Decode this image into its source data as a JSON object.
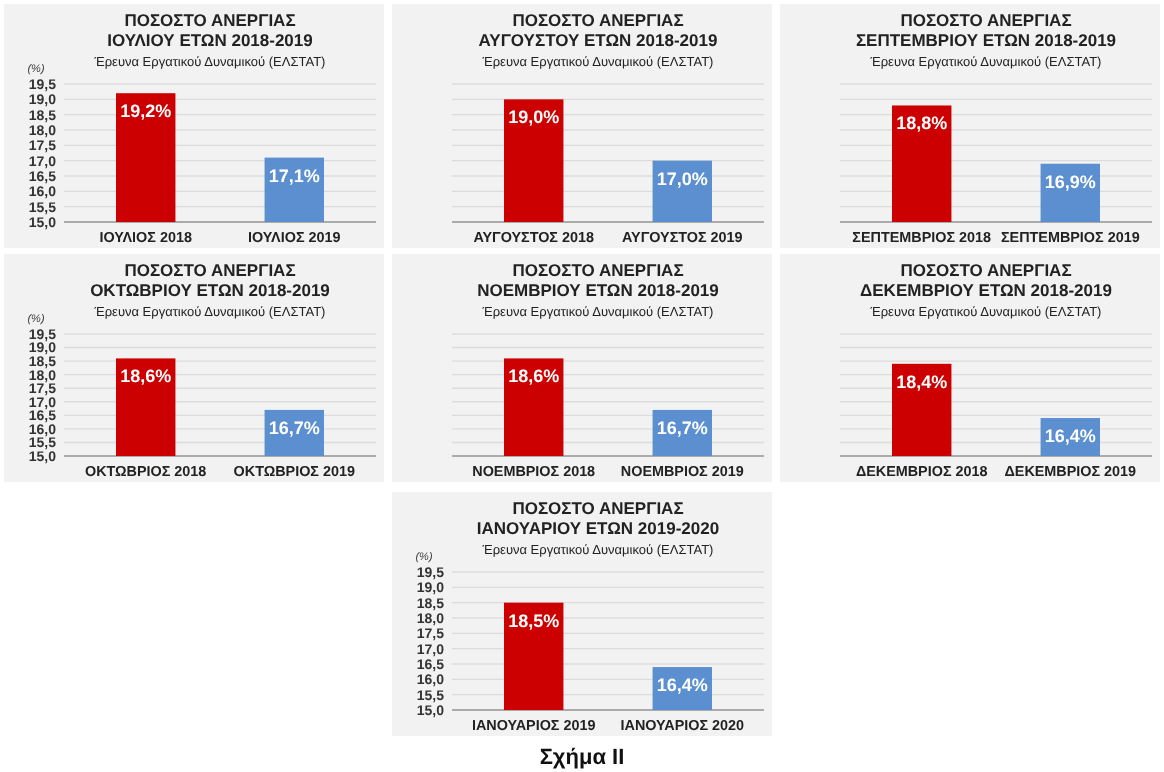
{
  "chart_data": [
    {
      "type": "bar",
      "title": "ΠΟΣΟΣΤΟ ΑΝΕΡΓΙΑΣ\nΙΟΥΛΙΟΥ ΕΤΩΝ 2018-2019",
      "subtitle": "Έρευνα Εργατικού Δυναμικού (ΕΛΣΤΑΤ)",
      "ylabel": "(%)",
      "categories": [
        "ΙΟΥΛΙΟΣ 2018",
        "ΙΟΥΛΙΟΣ 2019"
      ],
      "values": [
        19.2,
        17.1
      ],
      "value_labels": [
        "19,2%",
        "17,1%"
      ],
      "colors": [
        "#cc0000",
        "#5b8fd0"
      ],
      "ylim": [
        15,
        19.5
      ],
      "yticks": [
        {
          "value": 15,
          "label": "15,0"
        },
        {
          "value": 15.5,
          "label": "15,5"
        },
        {
          "value": 16,
          "label": "16,0"
        },
        {
          "value": 16.5,
          "label": "16,5"
        },
        {
          "value": 17,
          "label": "17,0"
        },
        {
          "value": 17.5,
          "label": "17,5"
        },
        {
          "value": 18,
          "label": "18,0"
        },
        {
          "value": 18.5,
          "label": "18,5"
        },
        {
          "value": 19,
          "label": "19,0"
        },
        {
          "value": 19.5,
          "label": "19,5"
        }
      ],
      "grid": "y"
    },
    {
      "type": "bar",
      "title": "ΠΟΣΟΣΤΟ ΑΝΕΡΓΙΑΣ\nΑΥΓΟΥΣΤΟΥ ΕΤΩΝ 2018-2019",
      "subtitle": "Έρευνα Εργατικού Δυναμικού (ΕΛΣΤΑΤ)",
      "categories": [
        "ΑΥΓΟΥΣΤΟΣ 2018",
        "ΑΥΓΟΥΣΤΟΣ 2019"
      ],
      "values": [
        19.0,
        17.0
      ],
      "value_labels": [
        "19,0%",
        "17,0%"
      ],
      "colors": [
        "#cc0000",
        "#5b8fd0"
      ],
      "ylim": [
        15,
        19.5
      ],
      "yticks": [
        {
          "value": 15,
          "label": null
        },
        {
          "value": 15.5,
          "label": null
        },
        {
          "value": 16,
          "label": null
        },
        {
          "value": 16.5,
          "label": null
        },
        {
          "value": 17,
          "label": null
        },
        {
          "value": 17.5,
          "label": null
        },
        {
          "value": 18,
          "label": null
        },
        {
          "value": 18.5,
          "label": null
        },
        {
          "value": 19,
          "label": null
        },
        {
          "value": 19.5,
          "label": null
        }
      ],
      "grid": "y",
      "tick_labels": "x"
    },
    {
      "type": "bar",
      "title": "ΠΟΣΟΣΤΟ ΑΝΕΡΓΙΑΣ\nΣΕΠΤΕΜΒΡΙΟΥ ΕΤΩΝ 2018-2019",
      "subtitle": "Έρευνα Εργατικού Δυναμικού (ΕΛΣΤΑΤ)",
      "categories": [
        "ΣΕΠΤΕΜΒΡΙΟΣ 2018",
        "ΣΕΠΤΕΜΒΡΙΟΣ 2019"
      ],
      "values": [
        18.8,
        16.9
      ],
      "value_labels": [
        "18,8%",
        "16,9%"
      ],
      "colors": [
        "#cc0000",
        "#5b8fd0"
      ],
      "ylim": [
        15,
        19.5
      ],
      "yticks": [
        {
          "value": 15,
          "label": null
        },
        {
          "value": 15.5,
          "label": null
        },
        {
          "value": 16,
          "label": null
        },
        {
          "value": 16.5,
          "label": null
        },
        {
          "value": 17,
          "label": null
        },
        {
          "value": 17.5,
          "label": null
        },
        {
          "value": 18,
          "label": null
        },
        {
          "value": 18.5,
          "label": null
        },
        {
          "value": 19,
          "label": null
        },
        {
          "value": 19.5,
          "label": null
        }
      ],
      "grid": "y",
      "tick_labels": "x"
    },
    {
      "type": "bar",
      "title": "ΠΟΣΟΣΤΟ ΑΝΕΡΓΙΑΣ\nΟΚΤΩΒΡΙΟΥ ΕΤΩΝ 2018-2019",
      "subtitle": "Έρευνα Εργατικού Δυναμικού (ΕΛΣΤΑΤ)",
      "ylabel": "(%)",
      "categories": [
        "ΟΚΤΩΒΡΙΟΣ 2018",
        "ΟΚΤΩΒΡΙΟΣ 2019"
      ],
      "values": [
        18.6,
        16.7
      ],
      "value_labels": [
        "18,6%",
        "16,7%"
      ],
      "colors": [
        "#cc0000",
        "#5b8fd0"
      ],
      "ylim": [
        15,
        19.5
      ],
      "yticks": [
        {
          "value": 15,
          "label": "15,0"
        },
        {
          "value": 15.5,
          "label": "15,5"
        },
        {
          "value": 16,
          "label": "16,0"
        },
        {
          "value": 16.5,
          "label": "16,5"
        },
        {
          "value": 17,
          "label": "17,0"
        },
        {
          "value": 17.5,
          "label": "17,5"
        },
        {
          "value": 18,
          "label": "18,0"
        },
        {
          "value": 18.5,
          "label": "18,5"
        },
        {
          "value": 19,
          "label": "19,0"
        },
        {
          "value": 19.5,
          "label": "19,5"
        }
      ],
      "grid": "y"
    },
    {
      "type": "bar",
      "title": "ΠΟΣΟΣΤΟ ΑΝΕΡΓΙΑΣ\nΝΟΕΜΒΡΙΟΥ ΕΤΩΝ 2018-2019",
      "subtitle": "Έρευνα Εργατικού Δυναμικού (ΕΛΣΤΑΤ)",
      "categories": [
        "ΝΟΕΜΒΡΙΟΣ 2018",
        "ΝΟΕΜΒΡΙΟΣ 2019"
      ],
      "values": [
        18.6,
        16.7
      ],
      "value_labels": [
        "18,6%",
        "16,7%"
      ],
      "colors": [
        "#cc0000",
        "#5b8fd0"
      ],
      "ylim": [
        15,
        19.5
      ],
      "yticks": [
        {
          "value": 15,
          "label": null
        },
        {
          "value": 15.5,
          "label": null
        },
        {
          "value": 16,
          "label": null
        },
        {
          "value": 16.5,
          "label": null
        },
        {
          "value": 17,
          "label": null
        },
        {
          "value": 17.5,
          "label": null
        },
        {
          "value": 18,
          "label": null
        },
        {
          "value": 18.5,
          "label": null
        },
        {
          "value": 19,
          "label": null
        },
        {
          "value": 19.5,
          "label": null
        }
      ],
      "grid": "y",
      "tick_labels": "x"
    },
    {
      "type": "bar",
      "title": "ΠΟΣΟΣΤΟ ΑΝΕΡΓΙΑΣ\nΔΕΚΕΜΒΡΙΟΥ ΕΤΩΝ 2018-2019",
      "subtitle": "Έρευνα Εργατικού Δυναμικού (ΕΛΣΤΑΤ)",
      "categories": [
        "ΔΕΚΕΜΒΡΙΟΣ 2018",
        "ΔΕΚΕΜΒΡΙΟΣ 2019"
      ],
      "values": [
        18.4,
        16.4
      ],
      "value_labels": [
        "18,4%",
        "16,4%"
      ],
      "colors": [
        "#cc0000",
        "#5b8fd0"
      ],
      "ylim": [
        15,
        19.5
      ],
      "yticks": [
        {
          "value": 15,
          "label": null
        },
        {
          "value": 15.5,
          "label": null
        },
        {
          "value": 16,
          "label": null
        },
        {
          "value": 16.5,
          "label": null
        },
        {
          "value": 17,
          "label": null
        },
        {
          "value": 17.5,
          "label": null
        },
        {
          "value": 18,
          "label": null
        },
        {
          "value": 18.5,
          "label": null
        },
        {
          "value": 19,
          "label": null
        },
        {
          "value": 19.5,
          "label": null
        }
      ],
      "grid": "y",
      "tick_labels": "x"
    },
    {
      "type": "bar",
      "title": "ΠΟΣΟΣΤΟ ΑΝΕΡΓΙΑΣ\nΙΑΝΟΥΑΡΙΟΥ ΕΤΩΝ 2019-2020",
      "subtitle": "Έρευνα Εργατικού Δυναμικού (ΕΛΣΤΑΤ)",
      "ylabel": "(%)",
      "categories": [
        "ΙΑΝΟΥΑΡΙΟΣ 2019",
        "ΙΑΝΟΥΑΡΙΟΣ 2020"
      ],
      "values": [
        18.5,
        16.4
      ],
      "value_labels": [
        "18,5%",
        "16,4%"
      ],
      "colors": [
        "#cc0000",
        "#5b8fd0"
      ],
      "ylim": [
        15,
        19.5
      ],
      "yticks": [
        {
          "value": 15,
          "label": "15,0"
        },
        {
          "value": 15.5,
          "label": "15,5"
        },
        {
          "value": 16,
          "label": "16,0"
        },
        {
          "value": 16.5,
          "label": "16,5"
        },
        {
          "value": 17,
          "label": "17,0"
        },
        {
          "value": 17.5,
          "label": "17,5"
        },
        {
          "value": 18,
          "label": "18,0"
        },
        {
          "value": 18.5,
          "label": "18,5"
        },
        {
          "value": 19,
          "label": "19,0"
        },
        {
          "value": 19.5,
          "label": "19,5"
        }
      ],
      "grid": "y",
      "annotations": [
        "Σχήμα II"
      ]
    }
  ]
}
